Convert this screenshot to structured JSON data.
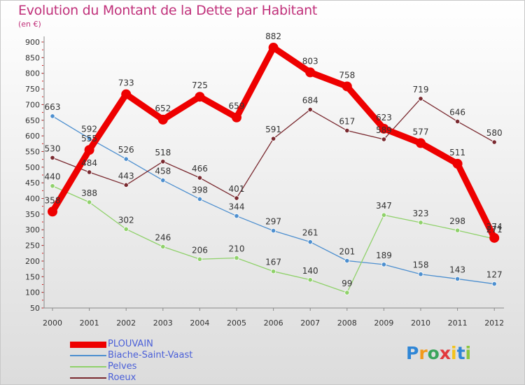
{
  "chart_data": {
    "type": "line",
    "title": "Evolution du Montant de la Dette par Habitant",
    "subtitle": "(en €)",
    "x": [
      "2000",
      "2001",
      "2002",
      "2003",
      "2004",
      "2005",
      "2006",
      "2007",
      "2008",
      "2009",
      "2010",
      "2011",
      "2012"
    ],
    "ylim": [
      50,
      900
    ],
    "yticks": [
      50,
      100,
      150,
      200,
      250,
      300,
      350,
      400,
      450,
      500,
      550,
      600,
      650,
      700,
      750,
      800,
      850,
      900
    ],
    "grid": false,
    "legend_position": "bottom-left",
    "series": [
      {
        "name": "PLOUVAIN",
        "color": "#ee0000",
        "values": [
          358,
          555,
          733,
          652,
          725,
          659,
          882,
          803,
          758,
          623,
          577,
          511,
          274
        ],
        "labels": [
          "358",
          "555",
          "733",
          "652",
          "725",
          "659",
          "882",
          "803",
          "758",
          "623",
          "577",
          "511",
          "274"
        ]
      },
      {
        "name": "Biache-Saint-Vaast",
        "color": "#4d8fcf",
        "values": [
          663,
          592,
          526,
          458,
          398,
          344,
          297,
          261,
          201,
          189,
          158,
          143,
          127
        ],
        "labels": [
          "663",
          "592",
          "526",
          "458",
          "398",
          "344",
          "297",
          "261",
          "201",
          "189",
          "158",
          "143",
          "127"
        ]
      },
      {
        "name": "Pelves",
        "color": "#8fd16a",
        "values": [
          440,
          388,
          302,
          246,
          206,
          210,
          167,
          140,
          99,
          347,
          323,
          298,
          271
        ],
        "labels": [
          "440",
          "388",
          "302",
          "246",
          "206",
          "210",
          "167",
          "140",
          "99",
          "347",
          "323",
          "298",
          "271"
        ]
      },
      {
        "name": "Roeux",
        "color": "#7a2a30",
        "values": [
          530,
          484,
          443,
          518,
          466,
          401,
          591,
          684,
          617,
          589,
          719,
          646,
          580
        ],
        "labels": [
          "530",
          "484",
          "443",
          "518",
          "466",
          "401",
          "591",
          "684",
          "617",
          "589",
          "719",
          "646",
          "580"
        ]
      }
    ]
  },
  "logo": {
    "letters": [
      "P",
      "r",
      "o",
      "x",
      "i",
      "t",
      "i"
    ],
    "colors": [
      "#2f86d6",
      "#f39a1b",
      "#3ba55c",
      "#e2383c",
      "#f3c31b",
      "#2f86d6",
      "#8cc63f"
    ]
  }
}
